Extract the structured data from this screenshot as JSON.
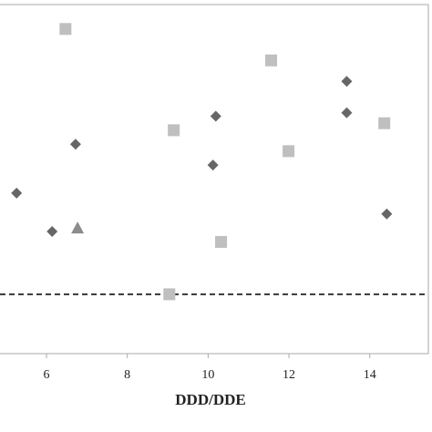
{
  "chart_data": {
    "type": "scatter",
    "x_label": "DDD/DDE",
    "xlim": [
      4.85,
      15.45
    ],
    "xticks": [
      6,
      8,
      10,
      12,
      14
    ],
    "ylim": [
      0,
      1
    ],
    "series": [
      {
        "marker": "diamond",
        "color": "#666666",
        "x": [
          5.26,
          6.14,
          6.72,
          10.12,
          10.19,
          13.43,
          13.43,
          14.42
        ],
        "values": [
          0.46,
          0.35,
          0.6,
          0.54,
          0.68,
          0.78,
          0.69,
          0.4
        ]
      },
      {
        "marker": "square",
        "color": "#bfbfbf",
        "x": [
          6.47,
          9.15,
          10.32,
          9.04,
          11.56,
          11.99,
          14.36
        ],
        "values": [
          0.93,
          0.64,
          0.32,
          0.17,
          0.84,
          0.58,
          0.66
        ]
      },
      {
        "marker": "triangle",
        "color": "#8c8c8c",
        "x": [
          6.77
        ],
        "values": [
          0.36
        ]
      }
    ],
    "reference_line": 0.17
  }
}
